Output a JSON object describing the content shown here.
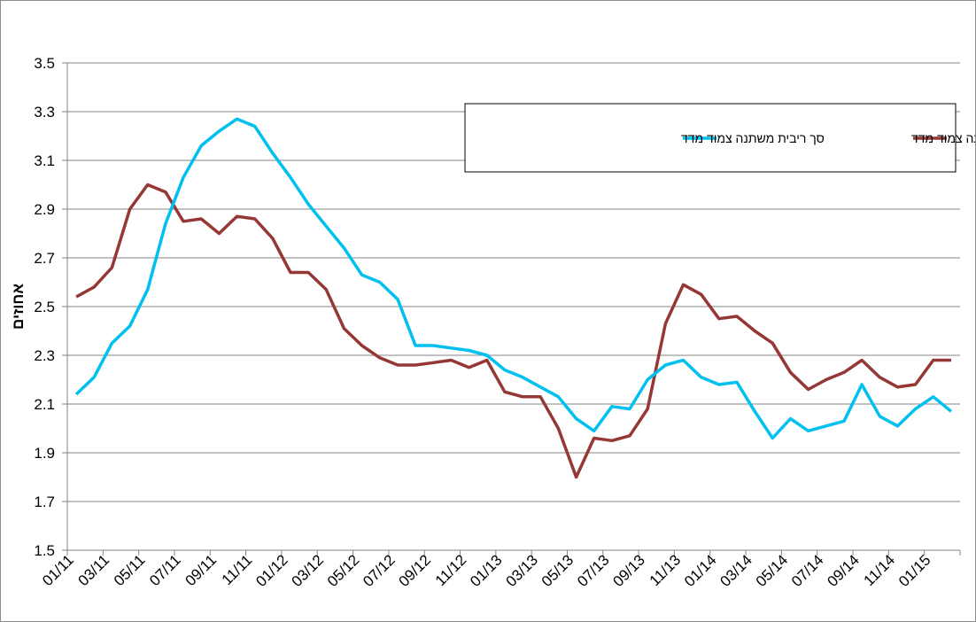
{
  "chart_data": {
    "type": "line",
    "ylabel": "אחוזים",
    "ylim": [
      1.5,
      3.5
    ],
    "yticks": [
      "3.5",
      "3.3",
      "3.1",
      "2.9",
      "2.7",
      "2.5",
      "2.3",
      "2.1",
      "1.9",
      "1.7",
      "1.5"
    ],
    "x": [
      "01/11",
      "02/11",
      "03/11",
      "04/11",
      "05/11",
      "06/11",
      "07/11",
      "08/11",
      "09/11",
      "10/11",
      "11/11",
      "12/11",
      "01/12",
      "02/12",
      "03/12",
      "04/12",
      "05/12",
      "06/12",
      "07/12",
      "08/12",
      "09/12",
      "10/12",
      "11/12",
      "12/12",
      "01/13",
      "02/13",
      "03/13",
      "04/13",
      "05/13",
      "06/13",
      "07/13",
      "08/13",
      "09/13",
      "10/13",
      "11/13",
      "12/13",
      "01/14",
      "02/14",
      "03/14",
      "04/14",
      "05/14",
      "06/14",
      "07/14",
      "08/14",
      "09/14",
      "10/14",
      "11/14",
      "12/14",
      "01/15",
      "02/15"
    ],
    "xtick_labels": [
      "01/11",
      "03/11",
      "05/11",
      "07/11",
      "09/11",
      "11/11",
      "01/12",
      "03/12",
      "05/12",
      "07/12",
      "09/12",
      "11/12",
      "01/13",
      "03/13",
      "05/13",
      "07/13",
      "09/13",
      "11/13",
      "01/14",
      "03/14",
      "05/14",
      "07/14",
      "09/14",
      "11/14",
      "01/15"
    ],
    "legend_position": "top-right",
    "grid": true,
    "series": [
      {
        "name": "ריבית קבועה צמוד מדד",
        "color": "#953735",
        "values": [
          2.54,
          2.58,
          2.66,
          2.9,
          3.0,
          2.97,
          2.85,
          2.86,
          2.8,
          2.87,
          2.86,
          2.78,
          2.64,
          2.64,
          2.57,
          2.41,
          2.34,
          2.29,
          2.26,
          2.26,
          2.27,
          2.28,
          2.25,
          2.28,
          2.15,
          2.13,
          2.13,
          2.0,
          1.8,
          1.96,
          1.95,
          1.97,
          2.08,
          2.43,
          2.59,
          2.55,
          2.45,
          2.46,
          2.4,
          2.35,
          2.23,
          2.16,
          2.2,
          2.23,
          2.28,
          2.21,
          2.17,
          2.18,
          2.28,
          2.28
        ]
      },
      {
        "name": "סך ריבית משתנה צמוד מדד",
        "color": "#00c0f0",
        "values": [
          2.14,
          2.21,
          2.35,
          2.42,
          2.57,
          2.84,
          3.03,
          3.16,
          3.22,
          3.27,
          3.24,
          3.13,
          3.03,
          2.92,
          2.83,
          2.74,
          2.63,
          2.6,
          2.53,
          2.34,
          2.34,
          2.33,
          2.32,
          2.3,
          2.24,
          2.21,
          2.17,
          2.13,
          2.04,
          1.99,
          2.09,
          2.08,
          2.2,
          2.26,
          2.28,
          2.21,
          2.18,
          2.19,
          2.07,
          1.96,
          2.04,
          1.99,
          2.01,
          2.03,
          2.18,
          2.05,
          2.01,
          2.08,
          2.13,
          2.07
        ]
      }
    ]
  }
}
